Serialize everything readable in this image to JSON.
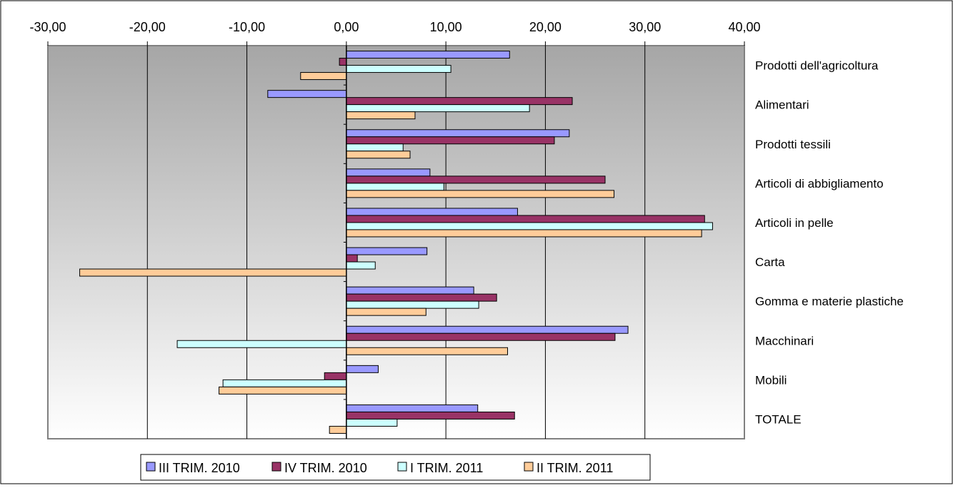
{
  "chart_data": {
    "type": "bar",
    "orientation": "horizontal",
    "x_axis_position": "top",
    "xlim": [
      -30,
      40
    ],
    "x_ticks": [
      -30,
      -20,
      -10,
      0,
      10,
      20,
      30,
      40
    ],
    "x_tick_labels": [
      "-30,00",
      "-20,00",
      "-10,00",
      "0,00",
      "10,00",
      "20,00",
      "30,00",
      "40,00"
    ],
    "grid": true,
    "legend_position": "bottom",
    "categories": [
      "Prodotti dell'agricoltura",
      "Alimentari",
      "Prodotti tessili",
      "Articoli di abbigliamento",
      "Articoli in pelle",
      "Carta",
      "Gomma e materie plastiche",
      "Macchinari",
      "Mobili",
      "TOTALE"
    ],
    "series": [
      {
        "name": "III TRIM. 2010",
        "color": "#9999ff",
        "values": [
          16.4,
          -7.9,
          22.4,
          8.4,
          17.2,
          8.1,
          12.8,
          28.3,
          3.2,
          13.2
        ]
      },
      {
        "name": "IV TRIM. 2010",
        "color": "#993366",
        "values": [
          -0.7,
          22.7,
          20.9,
          26.0,
          36.0,
          1.1,
          15.1,
          27.0,
          -2.2,
          16.9
        ]
      },
      {
        "name": "I TRIM. 2011",
        "color": "#ccffff",
        "values": [
          10.5,
          18.4,
          5.7,
          9.8,
          36.8,
          2.9,
          13.3,
          -17.0,
          -12.4,
          5.1
        ]
      },
      {
        "name": "II TRIM. 2011",
        "color": "#ffcc99",
        "values": [
          -4.6,
          6.9,
          6.4,
          26.9,
          35.7,
          -26.8,
          8.0,
          16.2,
          -12.8,
          -1.7
        ]
      }
    ]
  }
}
